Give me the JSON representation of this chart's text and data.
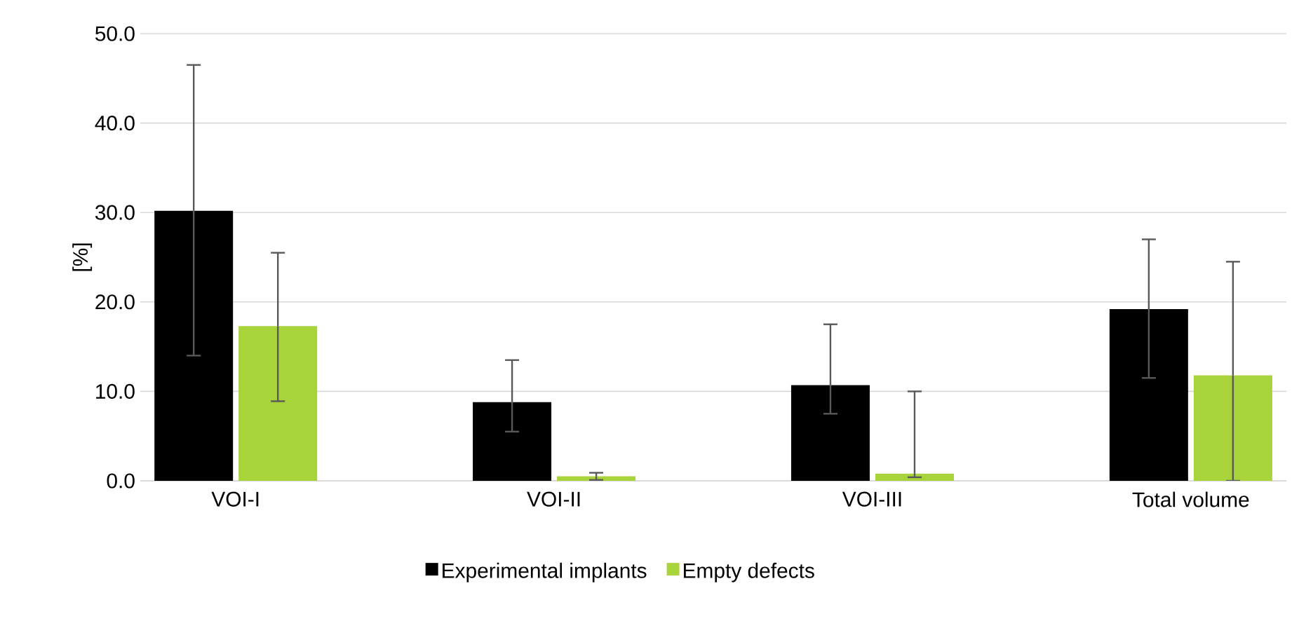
{
  "chart_data": {
    "type": "bar",
    "ylabel": "[%]",
    "categories": [
      "VOI-I",
      "VOI-II",
      "VOI-III",
      "Total volume"
    ],
    "series": [
      {
        "name": "Experimental implants",
        "color": "#000000",
        "values": [
          30.2,
          8.8,
          10.7,
          19.2
        ],
        "errors": [
          [
            14.0,
            46.5
          ],
          [
            5.5,
            13.5
          ],
          [
            7.5,
            17.5
          ],
          [
            11.5,
            27.0
          ]
        ]
      },
      {
        "name": "Empty defects",
        "color": "#a9d33a",
        "values": [
          17.3,
          0.5,
          0.8,
          11.8
        ],
        "errors": [
          [
            8.9,
            25.5
          ],
          0.4,
          [
            0.4,
            10.0
          ],
          [
            0.0,
            24.5
          ]
        ]
      }
    ],
    "ylim": [
      0,
      50
    ],
    "yticks": [
      {
        "value": 0,
        "label": "0.0"
      },
      {
        "value": 10,
        "label": "10.0"
      },
      {
        "value": 20,
        "label": "20.0"
      },
      {
        "value": 30,
        "label": "30.0"
      },
      {
        "value": 40,
        "label": "40.0"
      },
      {
        "value": 50,
        "label": "50.0"
      }
    ],
    "grid": "y",
    "legend": "bottom"
  }
}
